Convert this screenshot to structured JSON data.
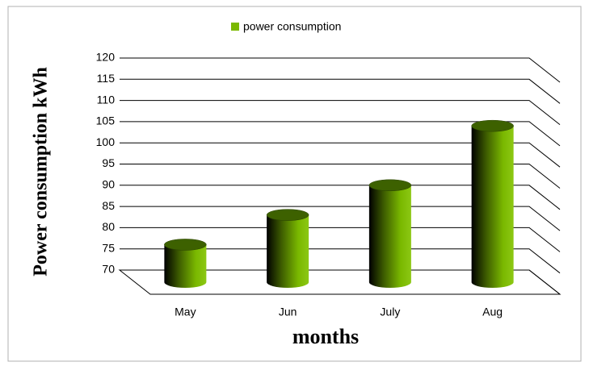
{
  "chart_data": {
    "type": "bar",
    "y_axis_label": "Power consumption kWh",
    "x_axis_label": "months",
    "categories": [
      "May",
      "Jun",
      "July",
      "Aug"
    ],
    "series": [
      {
        "name": "power consumption",
        "color": "#7ab800",
        "values": [
          76,
          83,
          90,
          104
        ]
      }
    ],
    "ylim": [
      70,
      120
    ],
    "yticks": [
      70,
      75,
      80,
      85,
      90,
      95,
      100,
      105,
      110,
      115,
      120
    ],
    "grid": true,
    "legend": "top"
  }
}
